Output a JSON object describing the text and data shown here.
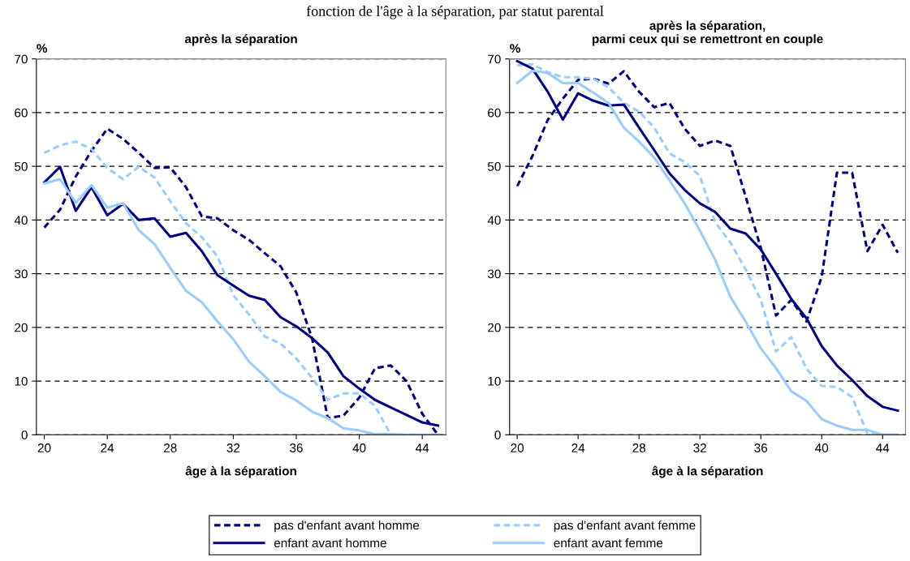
{
  "chart_data": [
    {
      "type": "line",
      "title": "après la séparation",
      "xlabel": "âge à la séparation",
      "ylabel": "%",
      "annotations": [
        "fonction de l'âge à la séparation, par statut parental"
      ],
      "x": [
        20,
        21,
        22,
        23,
        24,
        25,
        26,
        27,
        28,
        29,
        30,
        31,
        32,
        33,
        34,
        35,
        36,
        37,
        38,
        39,
        40,
        41,
        42,
        43,
        44,
        45
      ],
      "xlim": [
        19.5,
        45.5
      ],
      "xticks": [
        20,
        24,
        28,
        32,
        36,
        40,
        44
      ],
      "ylim": [
        0,
        70
      ],
      "yticks": [
        0,
        10,
        20,
        30,
        40,
        50,
        60,
        70
      ],
      "grid": "y",
      "legend": "bottom",
      "marker": "none",
      "series": [
        {
          "name": "pas d'enfant avant homme",
          "color": "#000080",
          "line_style": "dashed",
          "values": [
            38.6,
            41.9,
            48.1,
            52.9,
            57.0,
            55.1,
            52.5,
            49.7,
            49.8,
            46.1,
            40.7,
            40.3,
            38.1,
            36.3,
            33.8,
            31.4,
            26.5,
            18.0,
            3.1,
            3.6,
            6.9,
            12.4,
            12.9,
            10.0,
            3.9,
            0
          ]
        },
        {
          "name": "pas d'enfant avant femme",
          "color": "#99ccff",
          "line_style": "dashed",
          "values": [
            52.5,
            53.9,
            54.6,
            53.2,
            49.7,
            47.6,
            49.9,
            47.9,
            43.5,
            39.4,
            36.8,
            33.2,
            26.0,
            22.4,
            18.3,
            17.0,
            14.2,
            10.6,
            6.5,
            7.7,
            7.7,
            5.4,
            0,
            0,
            0,
            0
          ]
        },
        {
          "name": "enfant avant homme",
          "color": "#000080",
          "line_style": "solid",
          "values": [
            47.0,
            49.9,
            41.7,
            46.1,
            40.9,
            43.0,
            40.0,
            40.3,
            36.9,
            37.6,
            34.2,
            29.7,
            27.8,
            25.9,
            25.1,
            21.9,
            20.2,
            18.0,
            15.3,
            10.9,
            8.6,
            6.5,
            5.1,
            3.7,
            2.3,
            1.7
          ]
        },
        {
          "name": "enfant avant femme",
          "color": "#99ccff",
          "line_style": "solid",
          "values": [
            46.8,
            47.6,
            43.2,
            46.5,
            42.3,
            43.1,
            38.1,
            35.5,
            31.1,
            26.8,
            24.7,
            21.1,
            17.8,
            13.6,
            10.9,
            8.0,
            6.4,
            4.3,
            3.1,
            1.2,
            0.8,
            0.1,
            0.1,
            0,
            0,
            0
          ]
        }
      ]
    },
    {
      "type": "line",
      "title": "après la séparation,\nparmi ceux qui se remettront en couple",
      "xlabel": "âge à la séparation",
      "ylabel": "%",
      "x": [
        20,
        21,
        22,
        23,
        24,
        25,
        26,
        27,
        28,
        29,
        30,
        31,
        32,
        33,
        34,
        35,
        36,
        37,
        38,
        39,
        40,
        41,
        42,
        43,
        44,
        45
      ],
      "xlim": [
        19.5,
        45.5
      ],
      "xticks": [
        20,
        24,
        28,
        32,
        36,
        40,
        44
      ],
      "ylim": [
        0,
        70
      ],
      "yticks": [
        0,
        10,
        20,
        30,
        40,
        50,
        60,
        70
      ],
      "grid": "y",
      "marker": "none",
      "series": [
        {
          "color": "#000080",
          "line_style": "dashed",
          "values": [
            46.3,
            51.9,
            58.6,
            62.6,
            66.1,
            66.3,
            65.4,
            67.7,
            63.9,
            61.0,
            61.8,
            57.0,
            53.8,
            54.8,
            53.8,
            44.4,
            34.8,
            22.2,
            25.1,
            21.1,
            29.4,
            48.8,
            48.8,
            34.2,
            39.1,
            33.9
          ]
        },
        {
          "color": "#99ccff",
          "line_style": "dashed",
          "values": [
            68.8,
            69.0,
            67.5,
            66.6,
            66.6,
            66.3,
            64.7,
            61.8,
            60.2,
            57.2,
            52.4,
            50.8,
            48.2,
            39.6,
            35.8,
            30.8,
            25.1,
            15.5,
            18.2,
            12.3,
            9.1,
            8.9,
            7.0,
            0.3,
            0,
            0
          ]
        },
        {
          "color": "#000080",
          "line_style": "solid",
          "values": [
            69.6,
            68.2,
            63.9,
            58.7,
            63.6,
            62.2,
            61.3,
            61.5,
            57.2,
            53.0,
            48.7,
            45.6,
            43.1,
            41.5,
            38.4,
            37.5,
            34.5,
            30.0,
            25.3,
            21.7,
            16.5,
            12.9,
            10.2,
            7.2,
            5.2,
            4.5
          ]
        },
        {
          "color": "#99ccff",
          "line_style": "solid",
          "values": [
            65.5,
            67.8,
            67.4,
            65.5,
            65.5,
            63.7,
            61.8,
            57.2,
            54.6,
            51.6,
            47.4,
            43.1,
            38.0,
            32.6,
            25.7,
            21.1,
            16.1,
            12.4,
            8.1,
            6.3,
            2.9,
            1.7,
            0.9,
            0.9,
            0,
            0
          ]
        }
      ]
    }
  ]
}
